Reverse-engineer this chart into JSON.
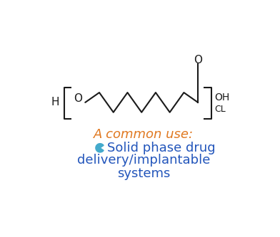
{
  "bg_color": "#ffffff",
  "title_text": "A common use:",
  "title_color": "#e07820",
  "title_fontsize": 13,
  "body_color": "#2255bb",
  "body_fontsize": 13,
  "bullet_color": "#44aacc",
  "black": "#1a1a1a",
  "H_label": "H",
  "O_label": "O",
  "OH_label": "OH",
  "CL_label": "CL",
  "carbonyl_O": "O",
  "line2": "delivery/implantable",
  "line3": "systems"
}
